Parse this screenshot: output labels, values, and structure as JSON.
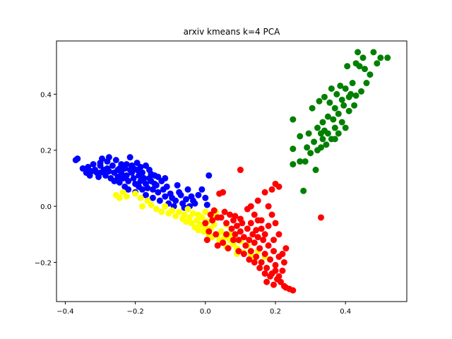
{
  "chart_data": {
    "type": "scatter",
    "title": "arxiv kmeans k=4 PCA",
    "xlabel": "",
    "ylabel": "",
    "xlim": [
      -0.425,
      0.575
    ],
    "ylim": [
      -0.34,
      0.59
    ],
    "xticks": [
      -0.4,
      -0.2,
      0.0,
      0.2,
      0.4
    ],
    "xtick_labels": [
      "−0.4",
      "−0.2",
      "0.0",
      "0.2",
      "0.4"
    ],
    "yticks": [
      -0.2,
      0.0,
      0.2,
      0.4
    ],
    "ytick_labels": [
      "−0.2",
      "0.0",
      "0.2",
      "0.4"
    ],
    "grid": false,
    "legend": "none",
    "series": [
      {
        "color": "#0000ff",
        "points": [
          [
            -0.37,
            0.165
          ],
          [
            -0.365,
            0.17
          ],
          [
            -0.35,
            0.135
          ],
          [
            -0.34,
            0.12
          ],
          [
            -0.335,
            0.14
          ],
          [
            -0.33,
            0.11
          ],
          [
            -0.325,
            0.125
          ],
          [
            -0.32,
            0.15
          ],
          [
            -0.315,
            0.13
          ],
          [
            -0.31,
            0.12
          ],
          [
            -0.305,
            0.105
          ],
          [
            -0.3,
            0.145
          ],
          [
            -0.3,
            0.12
          ],
          [
            -0.295,
            0.17
          ],
          [
            -0.29,
            0.13
          ],
          [
            -0.285,
            0.11
          ],
          [
            -0.28,
            0.16
          ],
          [
            -0.28,
            0.135
          ],
          [
            -0.275,
            0.125
          ],
          [
            -0.27,
            0.1
          ],
          [
            -0.265,
            0.145
          ],
          [
            -0.26,
            0.12
          ],
          [
            -0.26,
            0.09
          ],
          [
            -0.255,
            0.165
          ],
          [
            -0.25,
            0.13
          ],
          [
            -0.25,
            0.105
          ],
          [
            -0.245,
            0.085
          ],
          [
            -0.24,
            0.15
          ],
          [
            -0.24,
            0.12
          ],
          [
            -0.235,
            0.1
          ],
          [
            -0.23,
            0.07
          ],
          [
            -0.23,
            0.135
          ],
          [
            -0.225,
            0.11
          ],
          [
            -0.22,
            0.09
          ],
          [
            -0.22,
            0.06
          ],
          [
            -0.215,
            0.175
          ],
          [
            -0.21,
            0.145
          ],
          [
            -0.21,
            0.12
          ],
          [
            -0.205,
            0.1
          ],
          [
            -0.2,
            0.08
          ],
          [
            -0.2,
            0.05
          ],
          [
            -0.195,
            0.13
          ],
          [
            -0.19,
            0.11
          ],
          [
            -0.19,
            0.07
          ],
          [
            -0.185,
            0.09
          ],
          [
            -0.18,
            0.06
          ],
          [
            -0.18,
            0.12
          ],
          [
            -0.175,
            0.1
          ],
          [
            -0.17,
            0.08
          ],
          [
            -0.17,
            0.04
          ],
          [
            -0.165,
            0.065
          ],
          [
            -0.16,
            0.13
          ],
          [
            -0.155,
            0.09
          ],
          [
            -0.15,
            0.06
          ],
          [
            -0.15,
            0.03
          ],
          [
            -0.145,
            0.11
          ],
          [
            -0.14,
            0.075
          ],
          [
            -0.135,
            0.05
          ],
          [
            -0.13,
            0.02
          ],
          [
            -0.125,
            0.09
          ],
          [
            -0.12,
            0.06
          ],
          [
            -0.115,
            0.035
          ],
          [
            -0.11,
            0.07
          ],
          [
            -0.105,
            0.01
          ],
          [
            -0.1,
            0.045
          ],
          [
            -0.095,
            0.03
          ],
          [
            -0.09,
            0.0
          ],
          [
            -0.085,
            0.02
          ],
          [
            -0.08,
            0.075
          ],
          [
            -0.075,
            0.05
          ],
          [
            -0.07,
            0.04
          ],
          [
            -0.065,
            0.01
          ],
          [
            -0.06,
            -0.005
          ],
          [
            -0.055,
            0.025
          ],
          [
            -0.05,
            0.06
          ],
          [
            -0.045,
            0.0
          ],
          [
            -0.04,
            0.035
          ],
          [
            -0.035,
            0.02
          ],
          [
            -0.03,
            0.01
          ],
          [
            -0.02,
            0.04
          ],
          [
            -0.01,
            0.06
          ],
          [
            0.0,
            0.03
          ],
          [
            0.005,
            0.005
          ],
          [
            0.01,
            0.11
          ],
          [
            -0.215,
            0.13
          ],
          [
            -0.225,
            0.15
          ],
          [
            -0.245,
            0.135
          ],
          [
            -0.275,
            0.175
          ],
          [
            -0.3,
            0.155
          ],
          [
            -0.195,
            0.155
          ],
          [
            -0.185,
            0.14
          ],
          [
            -0.155,
            0.115
          ],
          [
            -0.135,
            0.105
          ],
          [
            -0.115,
            0.1
          ],
          [
            -0.17,
            0.145
          ],
          [
            -0.16,
            0.1
          ],
          [
            -0.205,
            0.135
          ],
          [
            -0.145,
            0.08
          ]
        ]
      },
      {
        "color": "#ffff00",
        "points": [
          [
            -0.255,
            0.04
          ],
          [
            -0.245,
            0.03
          ],
          [
            -0.235,
            0.05
          ],
          [
            -0.225,
            0.035
          ],
          [
            -0.2,
            0.045
          ],
          [
            -0.185,
            0.03
          ],
          [
            -0.18,
            0.0
          ],
          [
            -0.165,
            0.02
          ],
          [
            -0.155,
            0.005
          ],
          [
            -0.14,
            -0.01
          ],
          [
            -0.125,
            -0.02
          ],
          [
            -0.115,
            0.0
          ],
          [
            -0.105,
            -0.025
          ],
          [
            -0.095,
            -0.015
          ],
          [
            -0.085,
            -0.035
          ],
          [
            -0.075,
            -0.02
          ],
          [
            -0.065,
            -0.045
          ],
          [
            -0.06,
            -0.03
          ],
          [
            -0.055,
            -0.055
          ],
          [
            -0.045,
            -0.04
          ],
          [
            -0.04,
            -0.06
          ],
          [
            -0.035,
            -0.025
          ],
          [
            -0.03,
            -0.075
          ],
          [
            -0.025,
            -0.05
          ],
          [
            -0.02,
            -0.085
          ],
          [
            -0.015,
            -0.065
          ],
          [
            -0.01,
            -0.04
          ],
          [
            -0.005,
            -0.09
          ],
          [
            0.0,
            -0.075
          ],
          [
            0.005,
            -0.055
          ],
          [
            0.01,
            -0.1
          ],
          [
            0.015,
            -0.08
          ],
          [
            0.02,
            -0.11
          ],
          [
            0.025,
            -0.065
          ],
          [
            0.03,
            -0.035
          ],
          [
            0.035,
            -0.1
          ],
          [
            0.04,
            -0.12
          ],
          [
            0.045,
            -0.09
          ],
          [
            0.05,
            -0.13
          ],
          [
            0.055,
            -0.11
          ],
          [
            0.06,
            -0.145
          ],
          [
            0.07,
            -0.12
          ],
          [
            0.08,
            -0.135
          ],
          [
            0.09,
            -0.15
          ],
          [
            0.1,
            -0.125
          ],
          [
            0.11,
            -0.165
          ],
          [
            0.12,
            -0.14
          ],
          [
            0.13,
            -0.175
          ],
          [
            0.14,
            -0.19
          ],
          [
            0.15,
            -0.16
          ],
          [
            0.16,
            -0.2
          ],
          [
            0.17,
            -0.18
          ],
          [
            0.06,
            -0.065
          ],
          [
            0.03,
            -0.02
          ],
          [
            -0.05,
            -0.01
          ],
          [
            0.02,
            -0.045
          ],
          [
            -0.02,
            -0.03
          ],
          [
            0.0,
            -0.02
          ],
          [
            0.09,
            -0.17
          ],
          [
            0.07,
            -0.1
          ]
        ]
      },
      {
        "color": "#ff0000",
        "points": [
          [
            0.04,
            0.045
          ],
          [
            0.05,
            0.05
          ],
          [
            0.1,
            0.13
          ],
          [
            0.045,
            -0.04
          ],
          [
            0.055,
            -0.02
          ],
          [
            0.06,
            -0.06
          ],
          [
            0.07,
            -0.03
          ],
          [
            0.075,
            -0.08
          ],
          [
            0.08,
            -0.05
          ],
          [
            0.085,
            -0.1
          ],
          [
            0.09,
            -0.07
          ],
          [
            0.095,
            -0.12
          ],
          [
            0.1,
            -0.09
          ],
          [
            0.105,
            -0.06
          ],
          [
            0.11,
            -0.11
          ],
          [
            0.115,
            -0.14
          ],
          [
            0.12,
            -0.08
          ],
          [
            0.125,
            -0.12
          ],
          [
            0.13,
            -0.16
          ],
          [
            0.135,
            -0.1
          ],
          [
            0.14,
            -0.13
          ],
          [
            0.145,
            -0.18
          ],
          [
            0.15,
            -0.11
          ],
          [
            0.155,
            -0.15
          ],
          [
            0.16,
            -0.2
          ],
          [
            0.165,
            -0.12
          ],
          [
            0.17,
            -0.17
          ],
          [
            0.175,
            -0.22
          ],
          [
            0.18,
            -0.14
          ],
          [
            0.185,
            -0.19
          ],
          [
            0.19,
            -0.24
          ],
          [
            0.195,
            -0.16
          ],
          [
            0.2,
            -0.21
          ],
          [
            0.205,
            -0.26
          ],
          [
            0.21,
            -0.18
          ],
          [
            0.215,
            -0.27
          ],
          [
            0.22,
            -0.23
          ],
          [
            0.225,
            -0.285
          ],
          [
            0.23,
            -0.29
          ],
          [
            0.24,
            -0.295
          ],
          [
            0.25,
            -0.3
          ],
          [
            0.21,
            -0.1
          ],
          [
            0.23,
            -0.15
          ],
          [
            0.2,
            -0.06
          ],
          [
            0.19,
            -0.03
          ],
          [
            0.18,
            0.0
          ],
          [
            0.17,
            0.05
          ],
          [
            0.19,
            0.06
          ],
          [
            0.2,
            0.08
          ],
          [
            0.21,
            0.07
          ],
          [
            0.14,
            -0.03
          ],
          [
            0.12,
            -0.01
          ],
          [
            0.15,
            -0.05
          ],
          [
            0.16,
            -0.08
          ],
          [
            0.13,
            0.0
          ],
          [
            0.15,
            0.02
          ],
          [
            0.02,
            -0.05
          ],
          [
            0.01,
            -0.09
          ],
          [
            0.0,
            -0.06
          ],
          [
            0.005,
            -0.12
          ],
          [
            0.03,
            -0.1
          ],
          [
            0.035,
            -0.14
          ],
          [
            0.05,
            -0.13
          ],
          [
            0.065,
            -0.15
          ],
          [
            0.08,
            -0.12
          ],
          [
            0.095,
            -0.16
          ],
          [
            0.11,
            -0.17
          ],
          [
            0.125,
            -0.19
          ],
          [
            0.14,
            -0.2
          ],
          [
            0.155,
            -0.22
          ],
          [
            0.17,
            -0.24
          ],
          [
            0.175,
            -0.27
          ],
          [
            0.185,
            -0.25
          ],
          [
            0.195,
            -0.28
          ],
          [
            0.2,
            -0.23
          ],
          [
            0.21,
            -0.25
          ],
          [
            0.035,
            -0.04
          ],
          [
            0.06,
            -0.1
          ],
          [
            0.085,
            -0.035
          ],
          [
            0.1,
            -0.045
          ],
          [
            0.13,
            -0.06
          ],
          [
            0.145,
            -0.085
          ],
          [
            0.16,
            -0.05
          ],
          [
            0.17,
            -0.1
          ],
          [
            0.18,
            -0.07
          ],
          [
            0.195,
            -0.12
          ],
          [
            0.22,
            -0.17
          ],
          [
            0.225,
            -0.2
          ],
          [
            0.33,
            -0.04
          ],
          [
            0.025,
            -0.015
          ],
          [
            0.015,
            -0.03
          ]
        ]
      },
      {
        "color": "#008000",
        "points": [
          [
            0.25,
            0.31
          ],
          [
            0.25,
            0.205
          ],
          [
            0.25,
            0.15
          ],
          [
            0.27,
            0.16
          ],
          [
            0.27,
            0.25
          ],
          [
            0.28,
            0.055
          ],
          [
            0.285,
            0.16
          ],
          [
            0.29,
            0.21
          ],
          [
            0.295,
            0.26
          ],
          [
            0.3,
            0.19
          ],
          [
            0.305,
            0.35
          ],
          [
            0.31,
            0.23
          ],
          [
            0.315,
            0.13
          ],
          [
            0.32,
            0.28
          ],
          [
            0.32,
            0.2
          ],
          [
            0.325,
            0.375
          ],
          [
            0.33,
            0.26
          ],
          [
            0.33,
            0.21
          ],
          [
            0.335,
            0.3
          ],
          [
            0.335,
            0.24
          ],
          [
            0.34,
            0.27
          ],
          [
            0.34,
            0.39
          ],
          [
            0.345,
            0.22
          ],
          [
            0.35,
            0.32
          ],
          [
            0.35,
            0.26
          ],
          [
            0.355,
            0.37
          ],
          [
            0.36,
            0.24
          ],
          [
            0.36,
            0.42
          ],
          [
            0.365,
            0.31
          ],
          [
            0.37,
            0.35
          ],
          [
            0.37,
            0.28
          ],
          [
            0.375,
            0.4
          ],
          [
            0.38,
            0.33
          ],
          [
            0.38,
            0.26
          ],
          [
            0.385,
            0.43
          ],
          [
            0.39,
            0.3
          ],
          [
            0.39,
            0.38
          ],
          [
            0.395,
            0.36
          ],
          [
            0.4,
            0.28
          ],
          [
            0.4,
            0.42
          ],
          [
            0.405,
            0.5
          ],
          [
            0.41,
            0.34
          ],
          [
            0.415,
            0.4
          ],
          [
            0.42,
            0.44
          ],
          [
            0.425,
            0.36
          ],
          [
            0.43,
            0.51
          ],
          [
            0.435,
            0.55
          ],
          [
            0.44,
            0.5
          ],
          [
            0.445,
            0.41
          ],
          [
            0.45,
            0.53
          ],
          [
            0.455,
            0.49
          ],
          [
            0.46,
            0.44
          ],
          [
            0.47,
            0.47
          ],
          [
            0.48,
            0.55
          ],
          [
            0.49,
            0.51
          ],
          [
            0.5,
            0.53
          ],
          [
            0.52,
            0.53
          ],
          [
            0.43,
            0.395
          ],
          [
            0.41,
            0.39
          ],
          [
            0.37,
            0.24
          ]
        ]
      }
    ]
  }
}
